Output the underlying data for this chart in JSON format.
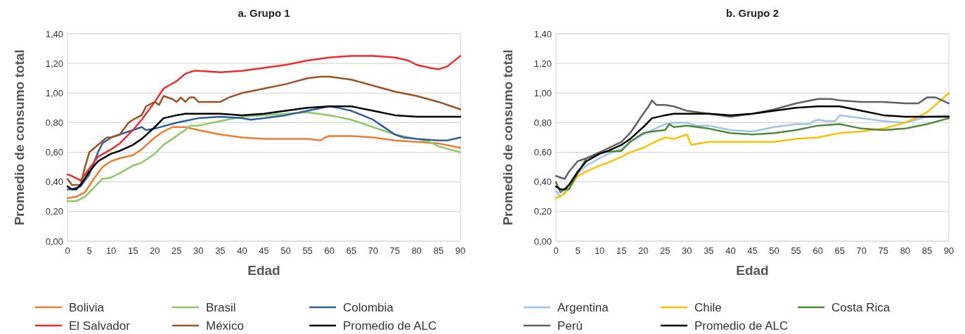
{
  "chart_data": [
    {
      "type": "line",
      "title": "a. Grupo 1",
      "xlabel": "Edad",
      "ylabel": "Promedio de consumo total",
      "xlim": [
        0,
        90
      ],
      "xticks": [
        0,
        5,
        10,
        15,
        20,
        25,
        30,
        35,
        40,
        45,
        50,
        55,
        60,
        65,
        70,
        75,
        80,
        85,
        90
      ],
      "ylim": [
        0,
        1.4
      ],
      "yticks": [
        {
          "value": 0,
          "label": "0,00"
        },
        {
          "value": 0.2,
          "label": "0,20"
        },
        {
          "value": 0.4,
          "label": "0,40"
        },
        {
          "value": 0.6,
          "label": "0,60"
        },
        {
          "value": 0.8,
          "label": "0,80"
        },
        {
          "value": 1.0,
          "label": "1,00"
        },
        {
          "value": 1.2,
          "label": "1,20"
        },
        {
          "value": 1.4,
          "label": "1,40"
        }
      ],
      "grid": "y",
      "legend": "bottom",
      "line_style": "solid",
      "series": [
        {
          "name": "Bolivia",
          "color": "#ed7d31",
          "x": [
            0,
            2,
            4,
            6,
            8,
            10,
            12,
            15,
            17,
            20,
            22,
            24,
            27,
            30,
            35,
            40,
            45,
            50,
            55,
            58,
            59,
            60,
            65,
            70,
            75,
            80,
            85,
            90
          ],
          "values": [
            0.29,
            0.3,
            0.33,
            0.42,
            0.5,
            0.54,
            0.56,
            0.58,
            0.62,
            0.7,
            0.74,
            0.77,
            0.77,
            0.75,
            0.72,
            0.7,
            0.69,
            0.69,
            0.69,
            0.68,
            0.7,
            0.71,
            0.71,
            0.7,
            0.68,
            0.67,
            0.66,
            0.63
          ]
        },
        {
          "name": "Brasil",
          "color": "#8cc866",
          "x": [
            0,
            2,
            4,
            6,
            8,
            10,
            12,
            15,
            17,
            20,
            22,
            24,
            27,
            28,
            30,
            35,
            40,
            45,
            50,
            55,
            60,
            65,
            70,
            75,
            80,
            83,
            85,
            90
          ],
          "values": [
            0.27,
            0.27,
            0.3,
            0.36,
            0.42,
            0.43,
            0.46,
            0.51,
            0.53,
            0.59,
            0.65,
            0.69,
            0.75,
            0.78,
            0.78,
            0.81,
            0.84,
            0.85,
            0.86,
            0.87,
            0.85,
            0.82,
            0.77,
            0.72,
            0.69,
            0.67,
            0.64,
            0.6
          ]
        },
        {
          "name": "Colombia",
          "color": "#2e5fa1",
          "x": [
            0,
            1,
            3,
            5,
            7,
            8,
            10,
            15,
            17,
            18,
            20,
            25,
            30,
            35,
            40,
            42,
            45,
            50,
            55,
            60,
            62,
            65,
            70,
            73,
            75,
            77,
            80,
            85,
            87,
            90
          ],
          "values": [
            0.35,
            0.35,
            0.37,
            0.45,
            0.6,
            0.66,
            0.7,
            0.75,
            0.77,
            0.75,
            0.76,
            0.8,
            0.83,
            0.84,
            0.83,
            0.82,
            0.83,
            0.85,
            0.88,
            0.91,
            0.9,
            0.88,
            0.82,
            0.76,
            0.72,
            0.7,
            0.69,
            0.68,
            0.68,
            0.7
          ]
        },
        {
          "name": "El Salvador",
          "color": "#ef2b2d",
          "x": [
            0,
            1,
            3,
            5,
            7,
            10,
            12,
            15,
            17,
            20,
            22,
            25,
            27,
            29,
            30,
            35,
            40,
            45,
            50,
            55,
            60,
            65,
            70,
            75,
            78,
            80,
            83,
            85,
            87,
            90
          ],
          "values": [
            0.45,
            0.44,
            0.41,
            0.49,
            0.57,
            0.62,
            0.66,
            0.75,
            0.82,
            0.94,
            1.03,
            1.08,
            1.13,
            1.15,
            1.15,
            1.14,
            1.15,
            1.17,
            1.19,
            1.22,
            1.24,
            1.25,
            1.25,
            1.24,
            1.22,
            1.19,
            1.17,
            1.16,
            1.18,
            1.25
          ]
        },
        {
          "name": "México",
          "color": "#9e5224",
          "x": [
            0,
            1,
            3,
            4,
            5,
            7,
            9,
            10,
            12,
            14,
            15,
            17,
            18,
            20,
            21,
            22,
            24,
            25,
            26,
            27,
            28,
            29,
            30,
            35,
            37,
            40,
            45,
            50,
            55,
            58,
            60,
            65,
            70,
            75,
            80,
            85,
            88,
            90
          ],
          "values": [
            0.42,
            0.38,
            0.38,
            0.5,
            0.6,
            0.65,
            0.7,
            0.7,
            0.72,
            0.8,
            0.82,
            0.85,
            0.91,
            0.94,
            0.92,
            0.98,
            0.96,
            0.94,
            0.97,
            0.94,
            0.97,
            0.97,
            0.94,
            0.94,
            0.97,
            1.0,
            1.03,
            1.06,
            1.1,
            1.11,
            1.11,
            1.09,
            1.05,
            1.01,
            0.98,
            0.94,
            0.91,
            0.89
          ]
        },
        {
          "name": "Promedio de ALC",
          "color": "#000000",
          "x": [
            0,
            1,
            2,
            3,
            5,
            7,
            10,
            12,
            15,
            17,
            20,
            22,
            25,
            27,
            30,
            35,
            40,
            45,
            50,
            55,
            60,
            65,
            70,
            75,
            80,
            85,
            90
          ],
          "values": [
            0.37,
            0.35,
            0.35,
            0.38,
            0.47,
            0.54,
            0.59,
            0.61,
            0.65,
            0.69,
            0.77,
            0.83,
            0.85,
            0.86,
            0.86,
            0.86,
            0.85,
            0.86,
            0.88,
            0.9,
            0.91,
            0.91,
            0.88,
            0.85,
            0.84,
            0.84,
            0.84
          ]
        }
      ]
    },
    {
      "type": "line",
      "title": "b. Grupo 2",
      "xlabel": "Edad",
      "ylabel": "Promedio de consumo total",
      "xlim": [
        0,
        90
      ],
      "xticks": [
        0,
        5,
        10,
        15,
        20,
        25,
        30,
        35,
        40,
        45,
        50,
        55,
        60,
        65,
        70,
        75,
        80,
        85,
        90
      ],
      "ylim": [
        0,
        1.4
      ],
      "yticks": [
        {
          "value": 0,
          "label": "0,00"
        },
        {
          "value": 0.2,
          "label": "0,20"
        },
        {
          "value": 0.4,
          "label": "0,40"
        },
        {
          "value": 0.6,
          "label": "0,60"
        },
        {
          "value": 0.8,
          "label": "0,80"
        },
        {
          "value": 1.0,
          "label": "1,00"
        },
        {
          "value": 1.2,
          "label": "1,20"
        },
        {
          "value": 1.4,
          "label": "1,40"
        }
      ],
      "grid": "y",
      "legend": "bottom",
      "line_style": "solid",
      "series": [
        {
          "name": "Argentina",
          "color": "#9dc3e6",
          "x": [
            0,
            1,
            3,
            5,
            7,
            10,
            12,
            15,
            17,
            20,
            22,
            25,
            27,
            30,
            32,
            35,
            40,
            45,
            50,
            55,
            58,
            59,
            60,
            62,
            64,
            65,
            70,
            75,
            80,
            85,
            90
          ],
          "values": [
            0.34,
            0.3,
            0.36,
            0.46,
            0.51,
            0.56,
            0.59,
            0.62,
            0.67,
            0.72,
            0.75,
            0.79,
            0.8,
            0.8,
            0.78,
            0.78,
            0.75,
            0.74,
            0.77,
            0.79,
            0.79,
            0.81,
            0.82,
            0.81,
            0.81,
            0.85,
            0.83,
            0.81,
            0.8,
            0.84,
            0.85
          ]
        },
        {
          "name": "Chile",
          "color": "#ffc000",
          "x": [
            0,
            2,
            4,
            5,
            7,
            10,
            12,
            15,
            17,
            20,
            22,
            25,
            27,
            30,
            31,
            35,
            40,
            45,
            50,
            55,
            60,
            65,
            70,
            75,
            80,
            83,
            85,
            87,
            90
          ],
          "values": [
            0.29,
            0.32,
            0.4,
            0.44,
            0.47,
            0.51,
            0.53,
            0.57,
            0.6,
            0.63,
            0.66,
            0.7,
            0.69,
            0.72,
            0.65,
            0.67,
            0.67,
            0.67,
            0.67,
            0.69,
            0.7,
            0.73,
            0.74,
            0.76,
            0.8,
            0.84,
            0.87,
            0.92,
            1.0
          ]
        },
        {
          "name": "Costa Rica",
          "color": "#4e8a3a",
          "x": [
            0,
            1,
            2,
            3,
            5,
            7,
            10,
            15,
            17,
            20,
            22,
            25,
            26,
            27,
            30,
            35,
            40,
            45,
            50,
            55,
            60,
            65,
            70,
            75,
            80,
            85,
            90
          ],
          "values": [
            0.4,
            0.33,
            0.35,
            0.35,
            0.46,
            0.56,
            0.6,
            0.61,
            0.67,
            0.73,
            0.74,
            0.75,
            0.79,
            0.77,
            0.78,
            0.76,
            0.73,
            0.72,
            0.73,
            0.75,
            0.78,
            0.79,
            0.76,
            0.75,
            0.76,
            0.79,
            0.83
          ]
        },
        {
          "name": "Perú",
          "color": "#606060",
          "x": [
            0,
            2,
            3,
            5,
            8,
            10,
            15,
            17,
            20,
            21,
            22,
            23,
            25,
            27,
            30,
            35,
            40,
            45,
            50,
            55,
            60,
            63,
            65,
            70,
            75,
            80,
            83,
            85,
            87,
            90
          ],
          "values": [
            0.44,
            0.42,
            0.47,
            0.54,
            0.57,
            0.6,
            0.67,
            0.73,
            0.86,
            0.9,
            0.95,
            0.92,
            0.92,
            0.91,
            0.88,
            0.86,
            0.84,
            0.86,
            0.89,
            0.93,
            0.96,
            0.96,
            0.95,
            0.94,
            0.94,
            0.93,
            0.93,
            0.97,
            0.97,
            0.93
          ]
        },
        {
          "name": "Promedio de ALC",
          "color": "#000000",
          "x": [
            0,
            1,
            2,
            3,
            5,
            7,
            10,
            12,
            15,
            17,
            20,
            22,
            25,
            27,
            30,
            35,
            40,
            45,
            50,
            55,
            60,
            65,
            70,
            75,
            80,
            85,
            90
          ],
          "values": [
            0.37,
            0.35,
            0.35,
            0.38,
            0.47,
            0.54,
            0.59,
            0.61,
            0.65,
            0.69,
            0.77,
            0.83,
            0.85,
            0.86,
            0.86,
            0.86,
            0.85,
            0.86,
            0.88,
            0.9,
            0.91,
            0.91,
            0.88,
            0.85,
            0.84,
            0.84,
            0.84
          ]
        }
      ]
    }
  ]
}
